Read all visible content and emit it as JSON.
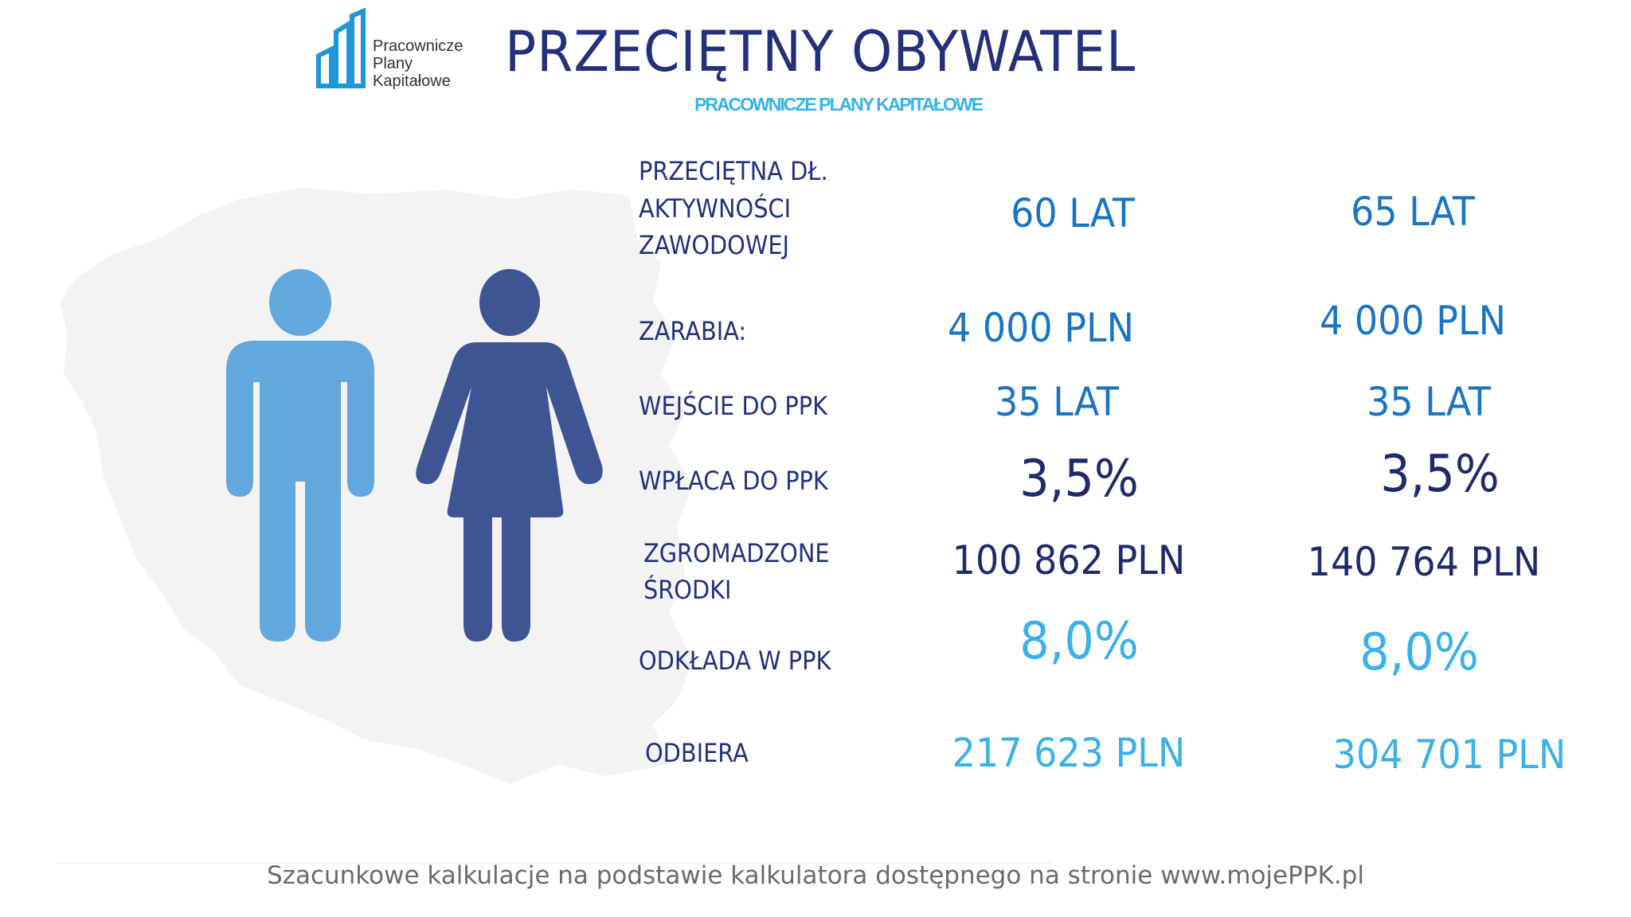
{
  "header": {
    "title": "PRZECIĘTNY OBYWATEL",
    "subtitle": "PRACOWNICZE PLANY KAPITAŁOWE",
    "logo_lines": [
      "Pracownicze",
      "Plany",
      "Kapitałowe"
    ]
  },
  "colors": {
    "man": "#62a8dc",
    "woman": "#3f5493",
    "map": "#f3f3f3",
    "label": "#23307a"
  },
  "rows": [
    {
      "label_lines": [
        "PRZECIĘTNA DŁ.",
        "AKTYWNOŚCI",
        "ZAWODOWEJ"
      ],
      "man": "60 LAT",
      "woman": "65 LAT"
    },
    {
      "label_lines": [
        "ZARABIA:"
      ],
      "man": "4 000 PLN",
      "woman": "4 000 PLN"
    },
    {
      "label_lines": [
        "WEJŚCIE DO PPK"
      ],
      "man": "35 LAT",
      "woman": "35 LAT"
    },
    {
      "label_lines": [
        "WPŁACA DO PPK"
      ],
      "man": "3,5%",
      "woman": "3,5%"
    },
    {
      "label_lines": [
        "ZGROMADZONE",
        "ŚRODKI"
      ],
      "man": "100 862 PLN",
      "woman": "140 764 PLN"
    },
    {
      "label_lines": [
        "ODKŁADA W PPK"
      ],
      "man": "8,0%",
      "woman": "8,0%"
    },
    {
      "label_lines": [
        "ODBIERA"
      ],
      "man": "217 623 PLN",
      "woman": "304 701 PLN"
    }
  ],
  "footer": "Szacunkowe kalkulacje na podstawie kalkulatora dostępnego na stronie www.mojePPK.pl"
}
